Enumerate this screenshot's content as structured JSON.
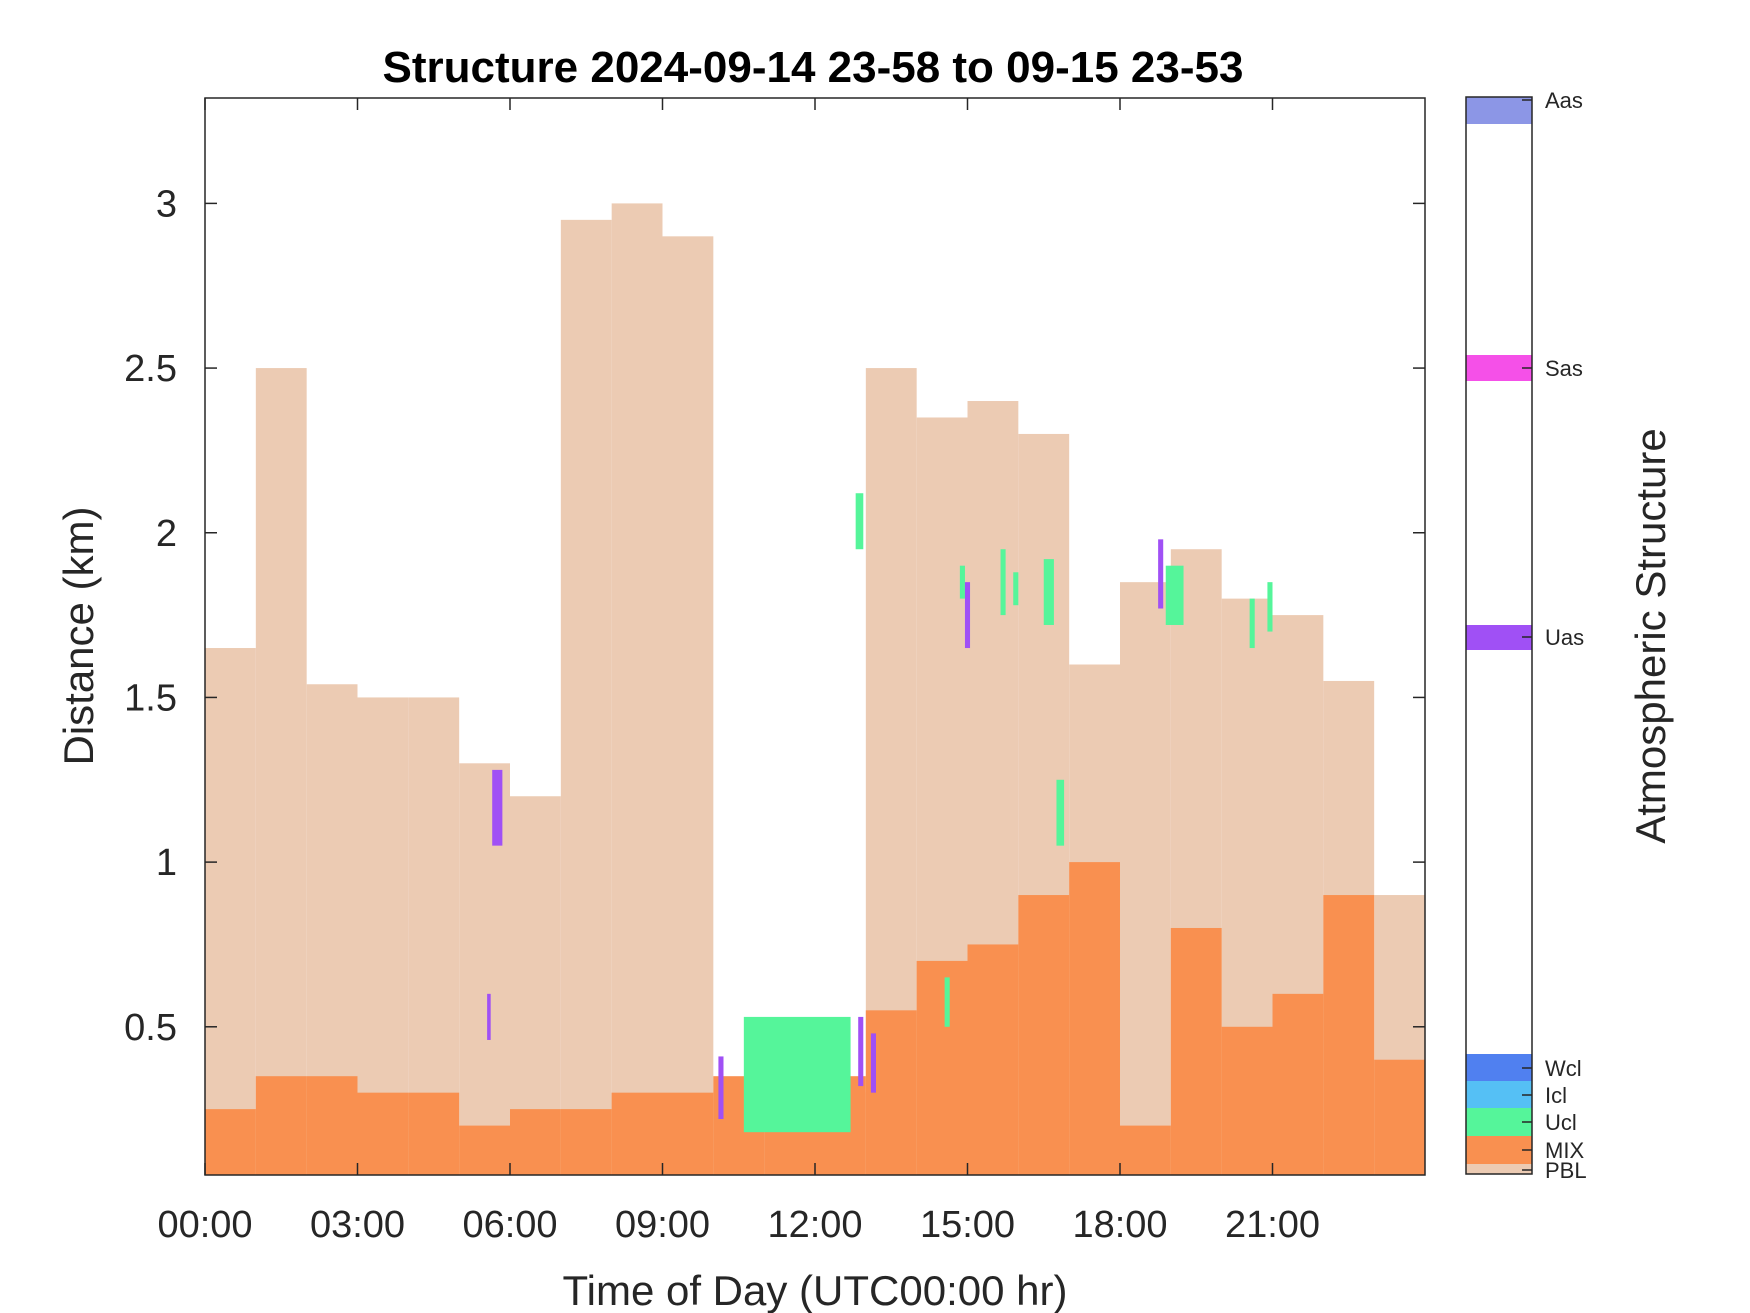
{
  "chart_data": {
    "type": "area",
    "title": "Structure 2024-09-14 23-58 to 09-15 23-53",
    "xlabel": "Time of Day (UTC00:00 hr)",
    "ylabel": "Distance (km)",
    "xlim": [
      0,
      24
    ],
    "ylim": [
      0.05,
      3.32
    ],
    "x_ticks": [
      0,
      3,
      6,
      9,
      12,
      15,
      18,
      21
    ],
    "x_tick_labels": [
      "00:00",
      "03:00",
      "06:00",
      "09:00",
      "12:00",
      "15:00",
      "18:00",
      "21:00"
    ],
    "y_ticks": [
      0.5,
      1,
      1.5,
      2,
      2.5,
      3
    ],
    "y_tick_labels": [
      "0.5",
      "1",
      "1.5",
      "2",
      "2.5",
      "3"
    ],
    "grid": false,
    "colorbar": {
      "label": "Atmospheric Structure",
      "categories": [
        {
          "name": "PBL",
          "color": "#ECCBB3"
        },
        {
          "name": "MIX",
          "color": "#F99050"
        },
        {
          "name": "Ucl",
          "color": "#55F59A"
        },
        {
          "name": "Icl",
          "color": "#55C0F5"
        },
        {
          "name": "Wcl",
          "color": "#5080F0"
        },
        {
          "name": "Uas",
          "color": "#A050F5"
        },
        {
          "name": "Sas",
          "color": "#F550E8"
        },
        {
          "name": "Aas",
          "color": "#8C96E6"
        }
      ]
    },
    "series": [
      {
        "name": "PBL",
        "x": [
          0,
          1,
          2,
          3,
          4,
          5,
          6,
          7,
          8,
          9,
          10,
          11,
          12,
          13,
          14,
          15,
          16,
          17,
          18,
          19,
          20,
          21,
          22,
          23
        ],
        "values": [
          1.65,
          2.5,
          1.54,
          1.5,
          1.5,
          1.3,
          1.2,
          2.95,
          3.0,
          2.9,
          0.3,
          0.3,
          0.3,
          2.5,
          2.35,
          2.4,
          2.3,
          1.6,
          1.85,
          1.95,
          1.8,
          1.75,
          1.55,
          0.9
        ]
      },
      {
        "name": "MIX",
        "x": [
          0,
          1,
          2,
          3,
          4,
          5,
          6,
          7,
          8,
          9,
          10,
          11,
          12,
          13,
          14,
          15,
          16,
          17,
          18,
          19,
          20,
          21,
          22,
          23
        ],
        "values": [
          0.25,
          0.35,
          0.35,
          0.3,
          0.3,
          0.2,
          0.25,
          0.25,
          0.3,
          0.3,
          0.35,
          0.3,
          0.35,
          0.55,
          0.7,
          0.75,
          0.9,
          1.0,
          0.2,
          0.8,
          0.5,
          0.6,
          0.9,
          0.4
        ]
      }
    ],
    "segments": [
      {
        "name": "Ucl",
        "x_start": 10.6,
        "x_end": 12.7,
        "y_low": 0.18,
        "y_high": 0.53
      },
      {
        "name": "Ucl",
        "x_start": 12.8,
        "x_end": 12.95,
        "y_low": 1.95,
        "y_high": 2.12
      },
      {
        "name": "Ucl",
        "x_start": 14.85,
        "x_end": 14.95,
        "y_low": 1.8,
        "y_high": 1.9
      },
      {
        "name": "Ucl",
        "x_start": 15.65,
        "x_end": 15.75,
        "y_low": 1.75,
        "y_high": 1.95
      },
      {
        "name": "Ucl",
        "x_start": 15.9,
        "x_end": 16.0,
        "y_low": 1.78,
        "y_high": 1.88
      },
      {
        "name": "Ucl",
        "x_start": 16.5,
        "x_end": 16.7,
        "y_low": 1.72,
        "y_high": 1.92
      },
      {
        "name": "Ucl",
        "x_start": 16.75,
        "x_end": 16.9,
        "y_low": 1.05,
        "y_high": 1.25
      },
      {
        "name": "Ucl",
        "x_start": 18.9,
        "x_end": 19.25,
        "y_low": 1.72,
        "y_high": 1.9
      },
      {
        "name": "Ucl",
        "x_start": 20.55,
        "x_end": 20.65,
        "y_low": 1.65,
        "y_high": 1.8
      },
      {
        "name": "Ucl",
        "x_start": 20.9,
        "x_end": 21.0,
        "y_low": 1.7,
        "y_high": 1.85
      },
      {
        "name": "Ucl",
        "x_start": 14.55,
        "x_end": 14.65,
        "y_low": 0.5,
        "y_high": 0.65
      },
      {
        "name": "Uas",
        "x_start": 5.65,
        "x_end": 5.85,
        "y_low": 1.05,
        "y_high": 1.28
      },
      {
        "name": "Uas",
        "x_start": 5.55,
        "x_end": 5.62,
        "y_low": 0.46,
        "y_high": 0.6
      },
      {
        "name": "Uas",
        "x_start": 10.1,
        "x_end": 10.2,
        "y_low": 0.22,
        "y_high": 0.41
      },
      {
        "name": "Uas",
        "x_start": 12.85,
        "x_end": 12.95,
        "y_low": 0.32,
        "y_high": 0.53
      },
      {
        "name": "Uas",
        "x_start": 13.1,
        "x_end": 13.2,
        "y_low": 0.3,
        "y_high": 0.48
      },
      {
        "name": "Uas",
        "x_start": 14.95,
        "x_end": 15.05,
        "y_low": 1.65,
        "y_high": 1.85
      },
      {
        "name": "Uas",
        "x_start": 18.75,
        "x_end": 18.85,
        "y_low": 1.77,
        "y_high": 1.98
      }
    ]
  }
}
